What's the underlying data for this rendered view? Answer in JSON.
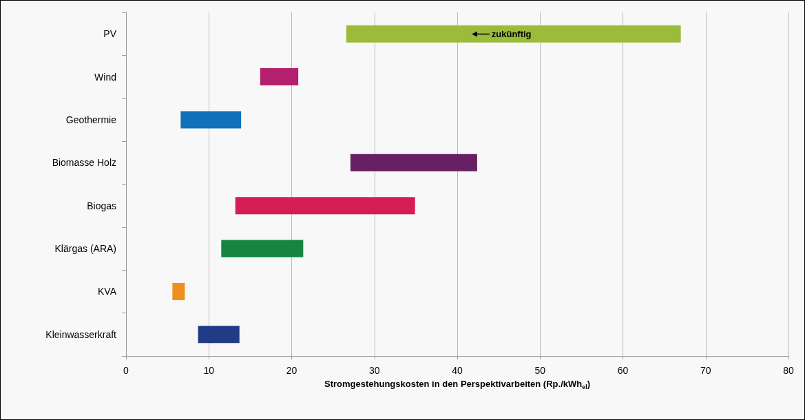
{
  "chart_data": {
    "type": "bar",
    "orientation": "horizontal",
    "categories": [
      "PV",
      "Wind",
      "Geothermie",
      "Biomasse Holz",
      "Biogas",
      "Klärgas (ARA)",
      "KVA",
      "Kleinwasserkraft"
    ],
    "base": [
      26.6,
      16.2,
      6.6,
      27.1,
      13.2,
      11.5,
      5.6,
      8.7
    ],
    "values": [
      40.4,
      4.6,
      7.3,
      15.3,
      21.7,
      9.9,
      1.5,
      5.0
    ],
    "colors": [
      "#9bbb3b",
      "#b41f6e",
      "#1072bb",
      "#672063",
      "#d51c53",
      "#168541",
      "#ee9020",
      "#213b86"
    ],
    "xlabel": "Stromgestehungskosten in den Perspektivarbeiten (Rp./kWh$_{el}$)",
    "xlim": [
      0,
      80
    ],
    "xticks": [
      0,
      10,
      20,
      30,
      40,
      50,
      60,
      70,
      80
    ],
    "grid": "x",
    "annotations": [
      "zukünftig"
    ]
  }
}
